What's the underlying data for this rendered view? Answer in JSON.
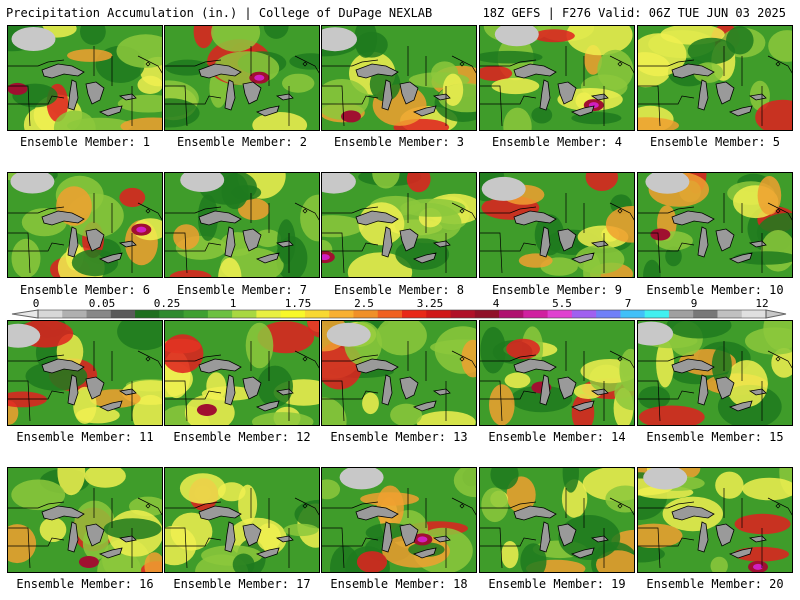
{
  "header": {
    "title": "Precipitation Accumulation (in.) | College of DuPage NEXLAB",
    "valid": "18Z GEFS | F276 Valid: 06Z TUE JUN 03 2025"
  },
  "colors": {
    "low_gray": "#c8c8c8",
    "dark_green": "#1e7a1e",
    "mid_green": "#3f9c2a",
    "light_green": "#8cc83c",
    "yellow": "#f0f050",
    "orange": "#f0a030",
    "red": "#e02020",
    "dark_red": "#a01030",
    "magenta": "#d020c0",
    "cyan": "#40f0f0",
    "lake_gray": "#9a9a9a"
  },
  "legend": {
    "labels": [
      "0",
      "0.05",
      "0.25",
      "1",
      "1.75",
      "2.5",
      "3.25",
      "4",
      "5.5",
      "7",
      "9",
      "12"
    ],
    "colors": [
      "#d8d8d8",
      "#b0b0b0",
      "#888888",
      "#5a5a5a",
      "#1e6e1e",
      "#2e8a2e",
      "#3fa032",
      "#6cc040",
      "#a8d840",
      "#e8f040",
      "#f8f828",
      "#f8d830",
      "#f8b030",
      "#f09028",
      "#f06020",
      "#e82818",
      "#d01818",
      "#b01028",
      "#901028",
      "#b01070",
      "#d020a0",
      "#e040d0",
      "#a060f0",
      "#7080f8",
      "#40c0f8",
      "#40f0f0",
      "#a0a0a0",
      "#787878",
      "#c0c0c0",
      "#e0e0e0"
    ]
  },
  "panels": [
    {
      "label": "Ensemble Member: 1"
    },
    {
      "label": "Ensemble Member: 2"
    },
    {
      "label": "Ensemble Member: 3"
    },
    {
      "label": "Ensemble Member: 4"
    },
    {
      "label": "Ensemble Member: 5"
    },
    {
      "label": "Ensemble Member: 6"
    },
    {
      "label": "Ensemble Member: 7"
    },
    {
      "label": "Ensemble Member: 8"
    },
    {
      "label": "Ensemble Member: 9"
    },
    {
      "label": "Ensemble Member: 10"
    },
    {
      "label": "Ensemble Member: 11"
    },
    {
      "label": "Ensemble Member: 12"
    },
    {
      "label": "Ensemble Member: 13"
    },
    {
      "label": "Ensemble Member: 14"
    },
    {
      "label": "Ensemble Member: 15"
    },
    {
      "label": "Ensemble Member: 16"
    },
    {
      "label": "Ensemble Member: 17"
    },
    {
      "label": "Ensemble Member: 18"
    },
    {
      "label": "Ensemble Member: 19"
    },
    {
      "label": "Ensemble Member: 20"
    }
  ]
}
